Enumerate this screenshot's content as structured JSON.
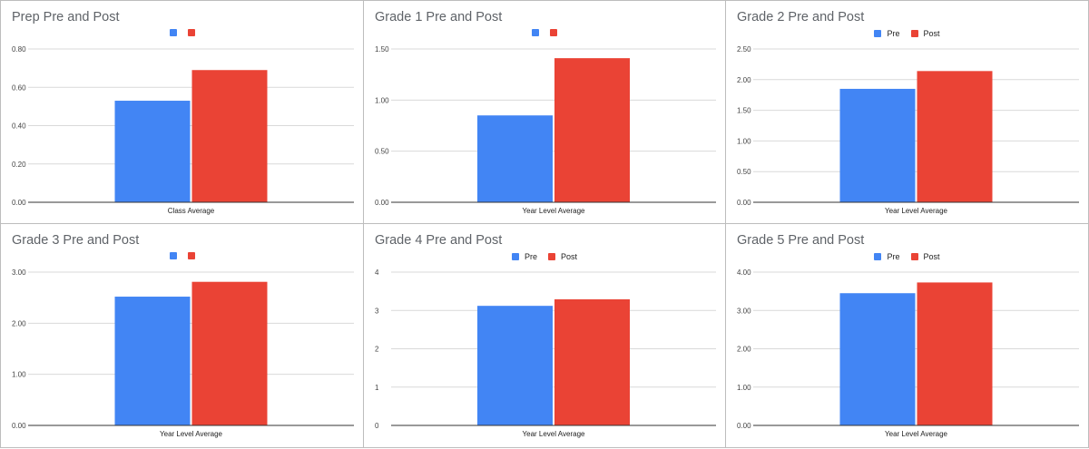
{
  "colors": {
    "pre": "#4285f4",
    "post": "#ea4335",
    "grid": "#d9d9d9",
    "axis": "#333333"
  },
  "chart_data": [
    {
      "type": "bar",
      "title": "Prep Pre and Post",
      "categories": [
        "Class Average"
      ],
      "series": [
        {
          "name": "",
          "color": "#4285f4",
          "values": [
            0.53
          ]
        },
        {
          "name": "",
          "color": "#ea4335",
          "values": [
            0.69
          ]
        }
      ],
      "yticks": [
        "0.00",
        "0.20",
        "0.40",
        "0.60",
        "0.80"
      ],
      "ylim": [
        0,
        0.8
      ],
      "grid": true,
      "legend": "top-center"
    },
    {
      "type": "bar",
      "title": "Grade 1 Pre and Post",
      "categories": [
        "Year Level Average"
      ],
      "series": [
        {
          "name": "",
          "color": "#4285f4",
          "values": [
            0.85
          ]
        },
        {
          "name": "",
          "color": "#ea4335",
          "values": [
            1.41
          ]
        }
      ],
      "yticks": [
        "0.00",
        "0.50",
        "1.00",
        "1.50"
      ],
      "ylim": [
        0,
        1.5
      ],
      "grid": true,
      "legend": "top-center"
    },
    {
      "type": "bar",
      "title": "Grade 2 Pre and Post",
      "categories": [
        "Year Level Average"
      ],
      "series": [
        {
          "name": "Pre",
          "color": "#4285f4",
          "values": [
            1.85
          ]
        },
        {
          "name": "Post",
          "color": "#ea4335",
          "values": [
            2.14
          ]
        }
      ],
      "yticks": [
        "0.00",
        "0.50",
        "1.00",
        "1.50",
        "2.00",
        "2.50"
      ],
      "ylim": [
        0,
        2.5
      ],
      "grid": true,
      "legend": "top-center"
    },
    {
      "type": "bar",
      "title": "Grade 3 Pre and Post",
      "categories": [
        "Year Level Average"
      ],
      "series": [
        {
          "name": "",
          "color": "#4285f4",
          "values": [
            2.52
          ]
        },
        {
          "name": "",
          "color": "#ea4335",
          "values": [
            2.81
          ]
        }
      ],
      "yticks": [
        "0.00",
        "1.00",
        "2.00",
        "3.00"
      ],
      "ylim": [
        0,
        3
      ],
      "grid": true,
      "legend": "top-center"
    },
    {
      "type": "bar",
      "title": "Grade 4 Pre and Post",
      "categories": [
        "Year Level Average"
      ],
      "series": [
        {
          "name": "Pre",
          "color": "#4285f4",
          "values": [
            3.12
          ]
        },
        {
          "name": "Post",
          "color": "#ea4335",
          "values": [
            3.29
          ]
        }
      ],
      "yticks": [
        "0",
        "1",
        "2",
        "3",
        "4"
      ],
      "ylim": [
        0,
        4
      ],
      "grid": true,
      "legend": "top-center"
    },
    {
      "type": "bar",
      "title": "Grade 5 Pre and Post",
      "categories": [
        "Year Level Average"
      ],
      "series": [
        {
          "name": "Pre",
          "color": "#4285f4",
          "values": [
            3.45
          ]
        },
        {
          "name": "Post",
          "color": "#ea4335",
          "values": [
            3.73
          ]
        }
      ],
      "yticks": [
        "0.00",
        "1.00",
        "2.00",
        "3.00",
        "4.00"
      ],
      "ylim": [
        0,
        4
      ],
      "grid": true,
      "legend": "top-center"
    }
  ]
}
